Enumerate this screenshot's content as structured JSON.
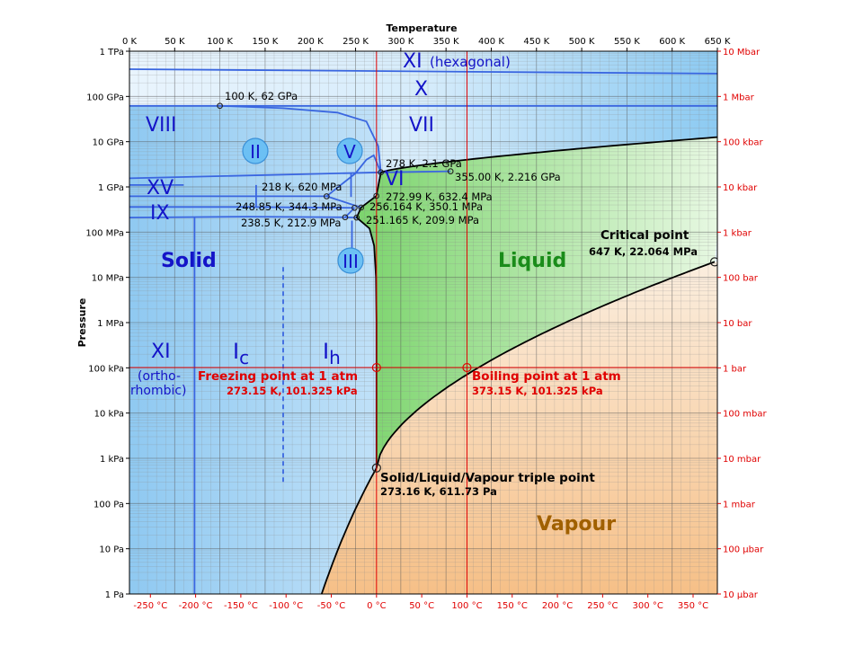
{
  "chart_data": {
    "type": "phase-diagram",
    "title": "",
    "xlabel_top": "Temperature",
    "ylabel": "Pressure",
    "x_ticks_kelvin": [
      "0 K",
      "50 K",
      "100 K",
      "150 K",
      "200 K",
      "250 K",
      "300 K",
      "350 K",
      "400 K",
      "450 K",
      "500 K",
      "550 K",
      "600 K",
      "650 K"
    ],
    "x_ticks_celsius": [
      "-250 °C",
      "-200 °C",
      "-150 °C",
      "-100 °C",
      "-50 °C",
      "0 °C",
      "50 °C",
      "100 °C",
      "150 °C",
      "200 °C",
      "250 °C",
      "300 °C",
      "350 °C"
    ],
    "y_ticks_pascal": [
      "1 TPa",
      "100 GPa",
      "10 GPa",
      "1 GPa",
      "100 MPa",
      "10 MPa",
      "1 MPa",
      "100 kPa",
      "10 kPa",
      "1 kPa",
      "100 Pa",
      "10 Pa",
      "1 Pa"
    ],
    "y_ticks_bar": [
      "10 Mbar",
      "1 Mbar",
      "100 kbar",
      "10 kbar",
      "1 kbar",
      "100 bar",
      "10 bar",
      "1 bar",
      "100 mbar",
      "10 mbar",
      "1 mbar",
      "100 µbar",
      "10 µbar"
    ],
    "x_range_kelvin": [
      0,
      650
    ],
    "y_range_pascal_log10": [
      0,
      12
    ],
    "regions": {
      "solid": "Solid",
      "liquid": "Liquid",
      "vapour": "Vapour"
    },
    "ice_phases": {
      "xi_hex": "XI",
      "xi_hex_note": "(hexagonal)",
      "x": "X",
      "viii": "VIII",
      "vii": "VII",
      "vi": "VI",
      "xv": "XV",
      "ix": "IX",
      "ii": "II",
      "v": "V",
      "iii": "III",
      "xi_ortho": "XI",
      "xi_ortho_note1": "(ortho-",
      "xi_ortho_note2": "rhombic)",
      "ic_main": "I",
      "ic_sub": "c",
      "ih_main": "I",
      "ih_sub": "h"
    },
    "points": [
      {
        "label": "100 K, 62 GPa",
        "T": 100,
        "P": 62000000000.0
      },
      {
        "label": "278 K, 2.1 GPa",
        "T": 278,
        "P": 2100000000.0
      },
      {
        "label": "355.00 K, 2.216 GPa",
        "T": 355,
        "P": 2216000000.0
      },
      {
        "label": "218 K, 620 MPa",
        "T": 218,
        "P": 620000000.0
      },
      {
        "label": "272.99 K, 632.4 MPa",
        "T": 272.99,
        "P": 632400000.0
      },
      {
        "label": "248.85 K, 344.3 MPa",
        "T": 248.85,
        "P": 344300000.0
      },
      {
        "label": "256.164 K, 350.1 MPa",
        "T": 256.164,
        "P": 350100000.0
      },
      {
        "label": "238.5 K, 212.9 MPa",
        "T": 238.5,
        "P": 212900000.0
      },
      {
        "label": "251.165 K, 209.9 MPa",
        "T": 251.165,
        "P": 209900000.0
      }
    ],
    "critical_point": {
      "title": "Critical point",
      "label": "647 K, 22.064 MPa",
      "T": 647,
      "P": 22064000.0
    },
    "triple_point": {
      "title": "Solid/Liquid/Vapour triple point",
      "label": "273.16 K, 611.73 Pa",
      "T": 273.16,
      "P": 611.73
    },
    "freezing_point": {
      "title": "Freezing point at 1 atm",
      "label": "273.15 K, 101.325 kPa",
      "T": 273.15,
      "P": 101325
    },
    "boiling_point": {
      "title": "Boiling point at 1 atm",
      "label": "373.15 K, 101.325 kPa",
      "T": 373.15,
      "P": 101325
    },
    "colors": {
      "solid": "#a9d6f5",
      "liquid": "#a8e29a",
      "vapour": "#f7c99a",
      "boundary_blue": "#3a66e0",
      "reference_red": "#e00000",
      "liquid_label": "#1a8c1a",
      "vapour_label": "#a06000",
      "solid_label": "#1414c8"
    }
  }
}
